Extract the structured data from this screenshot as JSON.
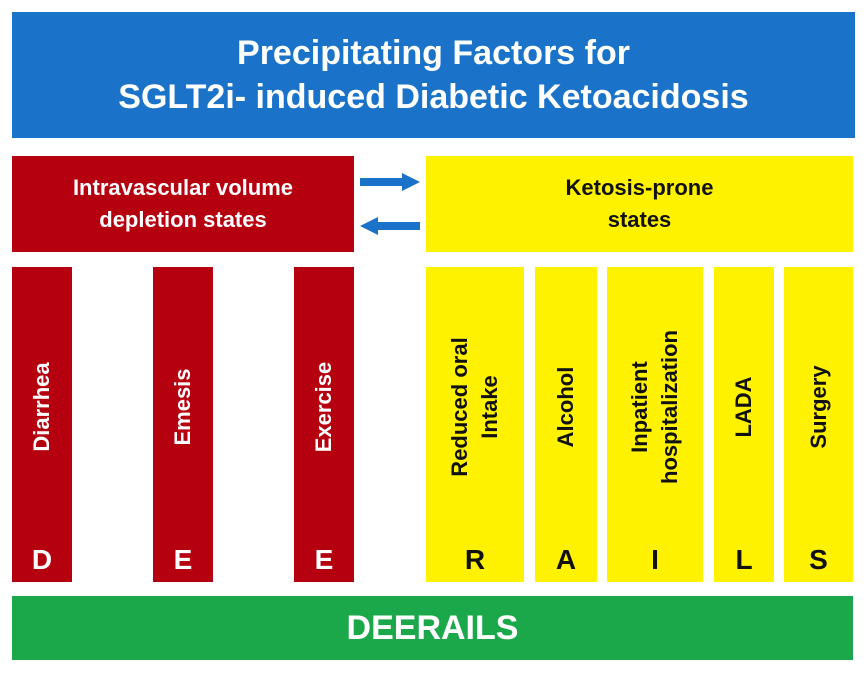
{
  "title": {
    "line1": "Precipitating Factors for",
    "line2": "SGLT2i- induced Diabetic Ketoacidosis"
  },
  "left_group": {
    "line1": "Intravascular volume",
    "line2": "depletion states",
    "color": "#b5000f"
  },
  "right_group": {
    "line1": "Ketosis-prone",
    "line2": "states",
    "color": "#fff200"
  },
  "arrow_color": "#1a73c8",
  "factors": [
    {
      "label": "Diarrhea",
      "letter": "D"
    },
    {
      "label": "Emesis",
      "letter": "E"
    },
    {
      "label": "Exercise",
      "letter": "E"
    },
    {
      "label_line1": "Reduced oral",
      "label_line2": "Intake",
      "letter": "R"
    },
    {
      "label": "Alcohol",
      "letter": "A"
    },
    {
      "label_line1": "Inpatient",
      "label_line2": "hospitalization",
      "letter": "I"
    },
    {
      "label": "LADA",
      "letter": "L"
    },
    {
      "label": "Surgery",
      "letter": "S"
    }
  ],
  "footer": {
    "label": "DEERAILS",
    "color": "#1aa84a"
  }
}
